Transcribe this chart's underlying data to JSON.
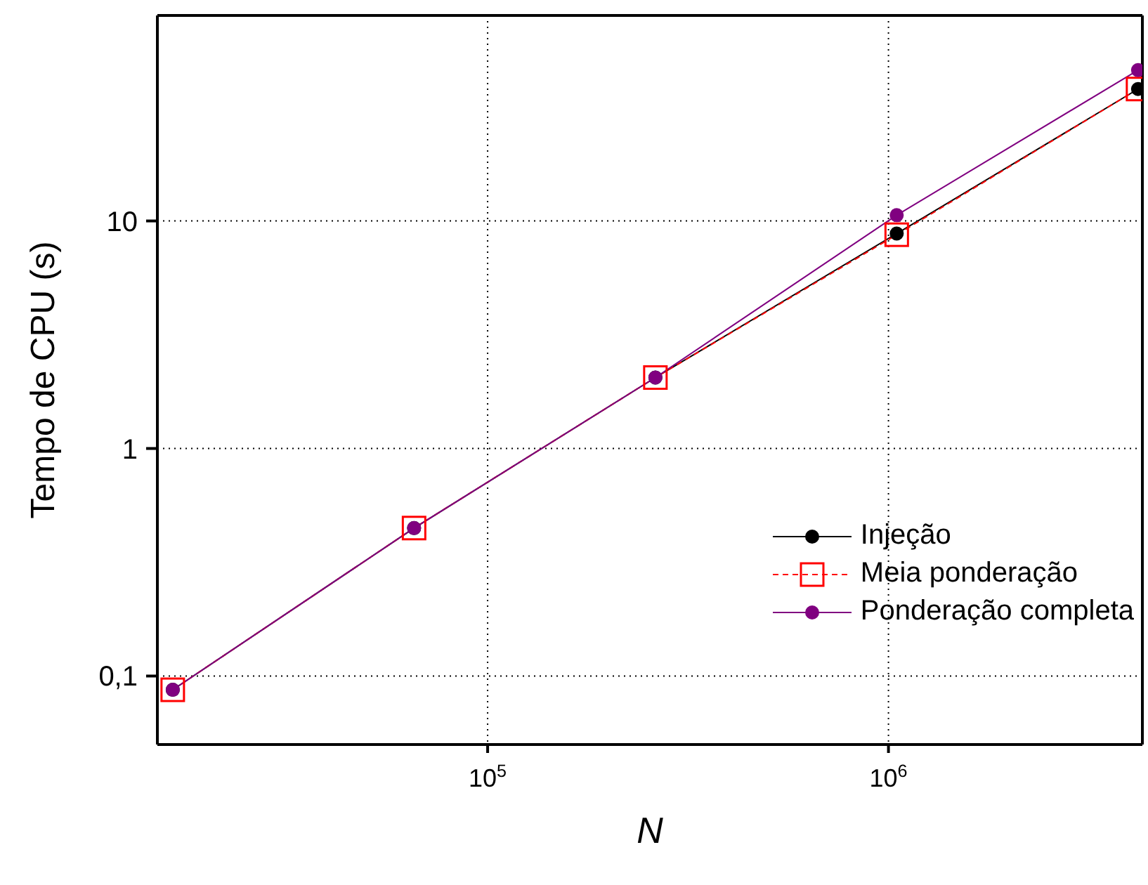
{
  "chart_data": {
    "type": "line",
    "xlabel": "N",
    "ylabel": "Tempo de CPU (s)",
    "log": "xy",
    "grid": true,
    "legend": "bottom right",
    "x": [
      16384,
      65536,
      262144,
      1048576,
      4194304
    ],
    "xlim": [
      15000,
      4300000
    ],
    "ylim": [
      0.05,
      80
    ],
    "xticks": [
      {
        "value": 100000,
        "label": "10$^{5}$"
      },
      {
        "value": 1000000,
        "label": "10$^{6}$"
      }
    ],
    "yticks": [
      {
        "value": 0.1,
        "label": "0,1"
      },
      1,
      10
    ],
    "series": [
      {
        "name": "Injeção",
        "color": "#000000",
        "marker": "circle",
        "line_style": "solid",
        "values": [
          0.087,
          0.447,
          2.05,
          8.8,
          38
        ]
      },
      {
        "name": "Meia ponderação",
        "color": "#ff0000",
        "marker": "square",
        "line_style": "dashed",
        "values": [
          0.087,
          0.447,
          2.05,
          8.7,
          38
        ]
      },
      {
        "name": "Ponderação completa",
        "color": "#800080",
        "marker": "circle",
        "line_style": "solid",
        "values": [
          0.087,
          0.447,
          2.05,
          10.6,
          46
        ]
      }
    ]
  }
}
